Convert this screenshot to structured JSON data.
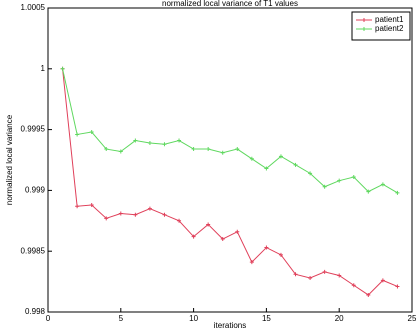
{
  "chart_data": {
    "type": "line",
    "title": "normalized local variance of T1 values",
    "x_label": "iterations",
    "y_label": "normalized local variance",
    "x": [
      1,
      2,
      3,
      4,
      5,
      6,
      7,
      8,
      9,
      10,
      11,
      12,
      13,
      14,
      15,
      16,
      17,
      18,
      19,
      20,
      21,
      22,
      23,
      24
    ],
    "series": [
      {
        "name": "patient1",
        "color": "#e0405a",
        "values": [
          1,
          0.99887,
          0.99888,
          0.99877,
          0.99881,
          0.9988,
          0.99885,
          0.9988,
          0.99875,
          0.99862,
          0.99872,
          0.9986,
          0.99866,
          0.99841,
          0.99853,
          0.99847,
          0.99831,
          0.99828,
          0.99833,
          0.9983,
          0.99822,
          0.99814,
          0.99826,
          0.99821
        ]
      },
      {
        "name": "patient2",
        "color": "#5fd85f",
        "values": [
          1,
          0.99946,
          0.99948,
          0.99934,
          0.99932,
          0.99941,
          0.99939,
          0.99938,
          0.99941,
          0.99934,
          0.99934,
          0.99931,
          0.99934,
          0.99926,
          0.99918,
          0.99928,
          0.99921,
          0.99914,
          0.99903,
          0.99908,
          0.99911,
          0.99899,
          0.99905,
          0.99898
        ]
      }
    ],
    "xlim": [
      0,
      25
    ],
    "xticks": [
      0,
      5,
      10,
      15,
      20,
      25
    ],
    "ylim": [
      0.998,
      1.0005
    ],
    "yticks": [
      0.998,
      0.9985,
      0.999,
      0.9995,
      1,
      1.0005
    ]
  }
}
